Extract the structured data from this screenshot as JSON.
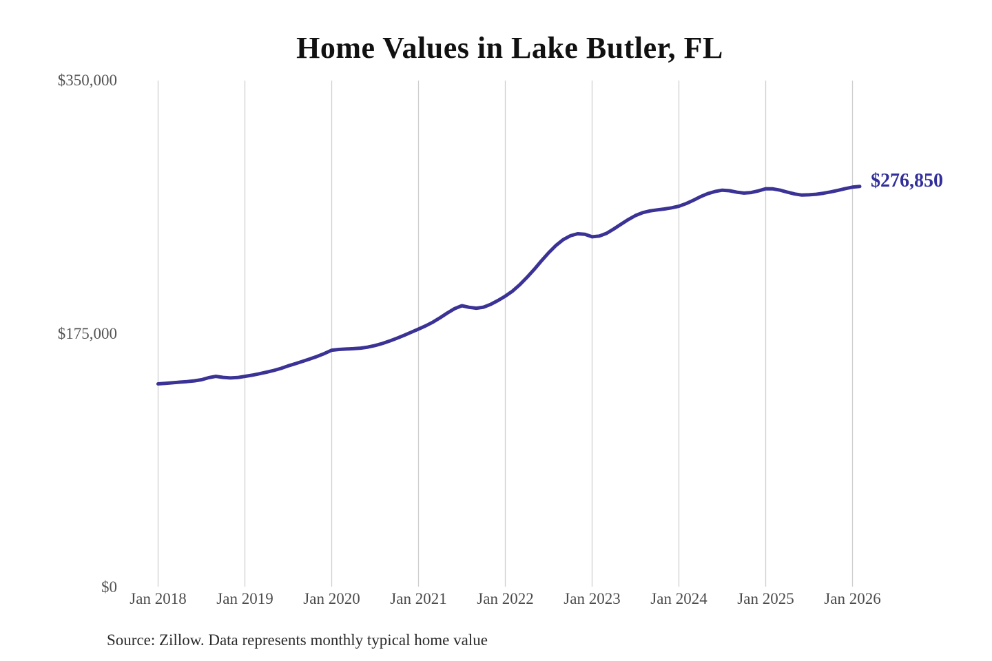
{
  "chart": {
    "title": "Home Values in Lake Butler, FL",
    "latest_value_label": "$276,850",
    "source_note": "Source: Zillow. Data represents monthly typical home value",
    "colors": {
      "line": "#3a3295",
      "annotation": "#322f9c",
      "gridline": "#cfcfcf",
      "y_tick_text": "#545454",
      "x_tick_text": "#4c4c4c",
      "title_text": "#111111",
      "source_text": "#2b2b2b",
      "background": "#ffffff"
    }
  },
  "chart_data": {
    "type": "line",
    "title": "Home Values in Lake Butler, FL",
    "series_name": "Typical home value",
    "frequency": "monthly",
    "x_start": "2018-01",
    "x_end": "2026-02",
    "values": [
      140500,
      140900,
      141300,
      141700,
      142100,
      142600,
      143400,
      144800,
      145700,
      145000,
      144600,
      144900,
      145700,
      146500,
      147500,
      148600,
      149800,
      151200,
      153000,
      154500,
      156100,
      157800,
      159500,
      161500,
      163800,
      164300,
      164600,
      164800,
      165200,
      165900,
      167000,
      168400,
      170100,
      172000,
      174000,
      176200,
      178400,
      180600,
      183200,
      186200,
      189500,
      192500,
      194500,
      193400,
      192800,
      193500,
      195500,
      198100,
      201100,
      204600,
      209000,
      214100,
      219600,
      225500,
      231100,
      236100,
      240100,
      242800,
      244200,
      243800,
      242100,
      242600,
      244500,
      247500,
      250800,
      254000,
      256800,
      258800,
      260000,
      260700,
      261300,
      262100,
      263200,
      265000,
      267300,
      269800,
      271900,
      273400,
      274300,
      273900,
      272900,
      272300,
      272700,
      273800,
      275300,
      275200,
      274300,
      272900,
      271700,
      270900,
      271100,
      271500,
      272200,
      273100,
      274200,
      275400,
      276400,
      276850
    ],
    "latest_value": 276850,
    "annotation": "$276,850",
    "x_tick_labels": [
      "Jan 2018",
      "Jan 2019",
      "Jan 2020",
      "Jan 2021",
      "Jan 2022",
      "Jan 2023",
      "Jan 2024",
      "Jan 2025",
      "Jan 2026"
    ],
    "y_tick_labels": [
      "$0",
      "$175,000",
      "$350,000"
    ],
    "y_tick_values": [
      0,
      175000,
      350000
    ],
    "ylim": [
      0,
      350000
    ],
    "grid": "vertical-only",
    "legend": "none",
    "source": "Source: Zillow. Data represents monthly typical home value"
  }
}
